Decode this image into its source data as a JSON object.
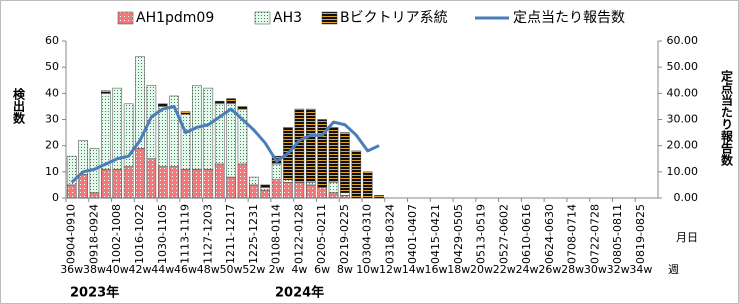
{
  "chart_data": {
    "type": "bar",
    "stacked": true,
    "y_label": "検出数",
    "y2_label": "定点当たり報告数",
    "x_label": "月日",
    "week_axis_label": "週",
    "year_labels": [
      "2023年",
      "2024年"
    ],
    "categories": [
      "0904-0910",
      null,
      "0918-0924",
      null,
      "1002-1008",
      null,
      "1016-1022",
      null,
      "1030-1105",
      null,
      "1113-1119",
      null,
      "1127-1203",
      null,
      "1211-1217",
      null,
      "1225-1231",
      null,
      "0108-0114",
      null,
      "0122-0128",
      null,
      "0205-0211",
      null,
      "0219-0225",
      null,
      "0304-0310",
      null,
      "0318-0324",
      null,
      "0401-0407",
      null,
      "0415-0421",
      null,
      "0429-0505",
      null,
      "0513-0519",
      null,
      "0527-0602",
      null,
      "0610-0616",
      null,
      "0624-0630",
      null,
      "0708-0714",
      null,
      "0722-0728",
      null,
      "0805-0811",
      null,
      "0819-0825",
      null
    ],
    "week_labels": [
      "36w",
      null,
      "38w",
      null,
      "40w",
      null,
      "42w",
      null,
      "44w",
      null,
      "46w",
      null,
      "48w",
      null,
      "50w",
      null,
      "52w",
      null,
      "2w",
      null,
      "4w",
      null,
      "6w",
      null,
      "8w",
      null,
      "10w",
      null,
      "12w",
      null,
      "14w",
      null,
      "16w",
      null,
      "18w",
      null,
      "20w",
      null,
      "22w",
      null,
      "24w",
      null,
      "26w",
      null,
      "28w",
      null,
      "30w",
      null,
      "32w",
      null,
      "34w",
      null
    ],
    "series": [
      {
        "name": "AH1pdm09",
        "type": "bar",
        "color": "#f4777a",
        "values": [
          5,
          9,
          2,
          11,
          11,
          12,
          19,
          15,
          12,
          12,
          11,
          11,
          11,
          13,
          8,
          13,
          5,
          3,
          7,
          6,
          6,
          5,
          4,
          2,
          1,
          0,
          0,
          0,
          null,
          null,
          null,
          null,
          null,
          null,
          null,
          null,
          null,
          null,
          null,
          null,
          null,
          null,
          null,
          null,
          null,
          null,
          null,
          null,
          null,
          null,
          null,
          null
        ]
      },
      {
        "name": "AH3",
        "type": "bar",
        "color": "#d9f2e3",
        "values": [
          11,
          13,
          17,
          29,
          31,
          24,
          35,
          28,
          23,
          27,
          21,
          32,
          31,
          23,
          28,
          21,
          3,
          1,
          6,
          1,
          0,
          1,
          0,
          4,
          1,
          0,
          0,
          0,
          null,
          null,
          null,
          null,
          null,
          null,
          null,
          null,
          null,
          null,
          null,
          null,
          null,
          null,
          null,
          null,
          null,
          null,
          null,
          null,
          null,
          null,
          null,
          null
        ]
      },
      {
        "name": "Bビクトリア系統",
        "type": "bar",
        "color": "#e6a328",
        "values": [
          0,
          0,
          0,
          1,
          0,
          0,
          0,
          0,
          1,
          0,
          1,
          0,
          0,
          1,
          2,
          1,
          0,
          1,
          3,
          20,
          28,
          28,
          26,
          21,
          23,
          18,
          10,
          1,
          null,
          null,
          null,
          null,
          null,
          null,
          null,
          null,
          null,
          null,
          null,
          null,
          null,
          null,
          null,
          null,
          null,
          null,
          null,
          null,
          null,
          null,
          null,
          null
        ]
      },
      {
        "name": "定点当たり報告数",
        "type": "line",
        "axis": "y2",
        "color": "#4a7ebb",
        "values": [
          6,
          10,
          11,
          13,
          15,
          16,
          22,
          31,
          34,
          35,
          25,
          27,
          28,
          31,
          34,
          30,
          26,
          21,
          14,
          17,
          22,
          24,
          24,
          29,
          28,
          24,
          18,
          20,
          null,
          null,
          null,
          null,
          null,
          null,
          null,
          null,
          null,
          null,
          null,
          null,
          null,
          null,
          null,
          null,
          null,
          null,
          null,
          null,
          null,
          null,
          null,
          null
        ]
      }
    ],
    "ylim": [
      0,
      60
    ],
    "yticks": [
      0,
      10,
      20,
      30,
      40,
      50,
      60
    ],
    "y2lim": [
      0,
      60
    ],
    "y2ticks": [
      {
        "value": 0,
        "label": "0.00"
      },
      {
        "value": 10,
        "label": "10.00"
      },
      {
        "value": 20,
        "label": "20.00"
      },
      {
        "value": 30,
        "label": "30.00"
      },
      {
        "value": 40,
        "label": "40.00"
      },
      {
        "value": 50,
        "label": "50.00"
      },
      {
        "value": 60,
        "label": "60.00"
      }
    ],
    "grid": false
  }
}
